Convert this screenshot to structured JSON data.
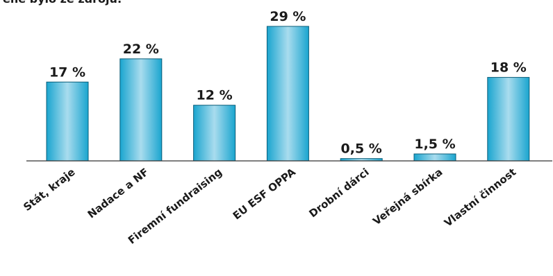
{
  "chart_data": {
    "type": "bar",
    "title": "ěné bylo ze zdrojů:",
    "categories": [
      "Stát, kraje",
      "Nadace a NF",
      "Firemní fundraising",
      "EU ESF OPPA",
      "Drobní dárci",
      "Veřejná sbírka",
      "Vlastní činnost"
    ],
    "values": [
      17,
      22,
      12,
      29,
      0.5,
      1.5,
      18
    ],
    "value_labels": [
      "17 %",
      "22 %",
      "12 %",
      "29 %",
      "0,5 %",
      "1,5 %",
      "18 %"
    ],
    "unit": "%",
    "ylim": [
      0,
      29
    ],
    "grid": false,
    "legend": "none",
    "colors": {
      "bar": "#1aa5cf",
      "bar_highlight": "#a9dcee",
      "bar_edge": "#0b5d78",
      "axis": "#333333"
    }
  }
}
